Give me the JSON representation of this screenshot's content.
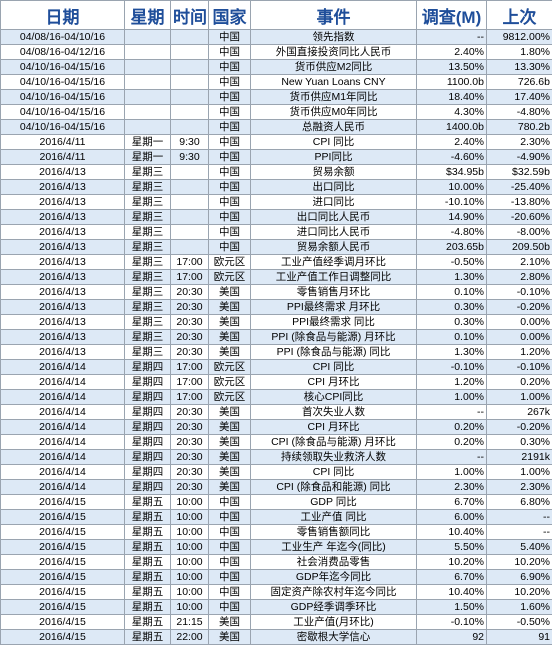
{
  "headers": {
    "date": "日期",
    "weekday": "星期",
    "time": "时间",
    "country": "国家",
    "event": "事件",
    "survey": "调查(M)",
    "prior": "上次"
  },
  "rows": [
    {
      "date": "04/08/16-04/10/16",
      "weekday": "",
      "time": "",
      "country": "中国",
      "event": "领先指数",
      "survey": "--",
      "prior": "9812.00%"
    },
    {
      "date": "04/08/16-04/12/16",
      "weekday": "",
      "time": "",
      "country": "中国",
      "event": "外国直接投资同比人民币",
      "survey": "2.40%",
      "prior": "1.80%"
    },
    {
      "date": "04/10/16-04/15/16",
      "weekday": "",
      "time": "",
      "country": "中国",
      "event": "货币供应M2同比",
      "survey": "13.50%",
      "prior": "13.30%"
    },
    {
      "date": "04/10/16-04/15/16",
      "weekday": "",
      "time": "",
      "country": "中国",
      "event": "New Yuan Loans CNY",
      "survey": "1100.0b",
      "prior": "726.6b"
    },
    {
      "date": "04/10/16-04/15/16",
      "weekday": "",
      "time": "",
      "country": "中国",
      "event": "货币供应M1年同比",
      "survey": "18.40%",
      "prior": "17.40%"
    },
    {
      "date": "04/10/16-04/15/16",
      "weekday": "",
      "time": "",
      "country": "中国",
      "event": "货币供应M0年同比",
      "survey": "4.30%",
      "prior": "-4.80%"
    },
    {
      "date": "04/10/16-04/15/16",
      "weekday": "",
      "time": "",
      "country": "中国",
      "event": "总融资人民币",
      "survey": "1400.0b",
      "prior": "780.2b"
    },
    {
      "date": "2016/4/11",
      "weekday": "星期一",
      "time": "9:30",
      "country": "中国",
      "event": "CPI 同比",
      "survey": "2.40%",
      "prior": "2.30%"
    },
    {
      "date": "2016/4/11",
      "weekday": "星期一",
      "time": "9:30",
      "country": "中国",
      "event": "PPI同比",
      "survey": "-4.60%",
      "prior": "-4.90%"
    },
    {
      "date": "2016/4/13",
      "weekday": "星期三",
      "time": "",
      "country": "中国",
      "event": "贸易余额",
      "survey": "$34.95b",
      "prior": "$32.59b"
    },
    {
      "date": "2016/4/13",
      "weekday": "星期三",
      "time": "",
      "country": "中国",
      "event": "出口同比",
      "survey": "10.00%",
      "prior": "-25.40%"
    },
    {
      "date": "2016/4/13",
      "weekday": "星期三",
      "time": "",
      "country": "中国",
      "event": "进口同比",
      "survey": "-10.10%",
      "prior": "-13.80%"
    },
    {
      "date": "2016/4/13",
      "weekday": "星期三",
      "time": "",
      "country": "中国",
      "event": "出口同比人民币",
      "survey": "14.90%",
      "prior": "-20.60%"
    },
    {
      "date": "2016/4/13",
      "weekday": "星期三",
      "time": "",
      "country": "中国",
      "event": "进口同比人民币",
      "survey": "-4.80%",
      "prior": "-8.00%"
    },
    {
      "date": "2016/4/13",
      "weekday": "星期三",
      "time": "",
      "country": "中国",
      "event": "贸易余额人民币",
      "survey": "203.65b",
      "prior": "209.50b"
    },
    {
      "date": "2016/4/13",
      "weekday": "星期三",
      "time": "17:00",
      "country": "欧元区",
      "event": "工业产值经季调月环比",
      "survey": "-0.50%",
      "prior": "2.10%"
    },
    {
      "date": "2016/4/13",
      "weekday": "星期三",
      "time": "17:00",
      "country": "欧元区",
      "event": "工业产值工作日调整同比",
      "survey": "1.30%",
      "prior": "2.80%"
    },
    {
      "date": "2016/4/13",
      "weekday": "星期三",
      "time": "20:30",
      "country": "美国",
      "event": "零售销售月环比",
      "survey": "0.10%",
      "prior": "-0.10%"
    },
    {
      "date": "2016/4/13",
      "weekday": "星期三",
      "time": "20:30",
      "country": "美国",
      "event": "PPI最终需求 月环比",
      "survey": "0.30%",
      "prior": "-0.20%"
    },
    {
      "date": "2016/4/13",
      "weekday": "星期三",
      "time": "20:30",
      "country": "美国",
      "event": "PPI最终需求 同比",
      "survey": "0.30%",
      "prior": "0.00%"
    },
    {
      "date": "2016/4/13",
      "weekday": "星期三",
      "time": "20:30",
      "country": "美国",
      "event": "PPI (除食品与能源) 月环比",
      "survey": "0.10%",
      "prior": "0.00%"
    },
    {
      "date": "2016/4/13",
      "weekday": "星期三",
      "time": "20:30",
      "country": "美国",
      "event": "PPI (除食品与能源) 同比",
      "survey": "1.30%",
      "prior": "1.20%"
    },
    {
      "date": "2016/4/14",
      "weekday": "星期四",
      "time": "17:00",
      "country": "欧元区",
      "event": "CPI 同比",
      "survey": "-0.10%",
      "prior": "-0.10%"
    },
    {
      "date": "2016/4/14",
      "weekday": "星期四",
      "time": "17:00",
      "country": "欧元区",
      "event": "CPI 月环比",
      "survey": "1.20%",
      "prior": "0.20%"
    },
    {
      "date": "2016/4/14",
      "weekday": "星期四",
      "time": "17:00",
      "country": "欧元区",
      "event": "核心CPI同比",
      "survey": "1.00%",
      "prior": "1.00%"
    },
    {
      "date": "2016/4/14",
      "weekday": "星期四",
      "time": "20:30",
      "country": "美国",
      "event": "首次失业人数",
      "survey": "--",
      "prior": "267k"
    },
    {
      "date": "2016/4/14",
      "weekday": "星期四",
      "time": "20:30",
      "country": "美国",
      "event": "CPI 月环比",
      "survey": "0.20%",
      "prior": "-0.20%"
    },
    {
      "date": "2016/4/14",
      "weekday": "星期四",
      "time": "20:30",
      "country": "美国",
      "event": "CPI (除食品与能源) 月环比",
      "survey": "0.20%",
      "prior": "0.30%"
    },
    {
      "date": "2016/4/14",
      "weekday": "星期四",
      "time": "20:30",
      "country": "美国",
      "event": "持续领取失业救济人数",
      "survey": "--",
      "prior": "2191k"
    },
    {
      "date": "2016/4/14",
      "weekday": "星期四",
      "time": "20:30",
      "country": "美国",
      "event": "CPI 同比",
      "survey": "1.00%",
      "prior": "1.00%"
    },
    {
      "date": "2016/4/14",
      "weekday": "星期四",
      "time": "20:30",
      "country": "美国",
      "event": "CPI (除食品和能源) 同比",
      "survey": "2.30%",
      "prior": "2.30%"
    },
    {
      "date": "2016/4/15",
      "weekday": "星期五",
      "time": "10:00",
      "country": "中国",
      "event": "GDP 同比",
      "survey": "6.70%",
      "prior": "6.80%"
    },
    {
      "date": "2016/4/15",
      "weekday": "星期五",
      "time": "10:00",
      "country": "中国",
      "event": "工业产值 同比",
      "survey": "6.00%",
      "prior": "--"
    },
    {
      "date": "2016/4/15",
      "weekday": "星期五",
      "time": "10:00",
      "country": "中国",
      "event": "零售销售额同比",
      "survey": "10.40%",
      "prior": "--"
    },
    {
      "date": "2016/4/15",
      "weekday": "星期五",
      "time": "10:00",
      "country": "中国",
      "event": "工业生产 年迄今(同比)",
      "survey": "5.50%",
      "prior": "5.40%"
    },
    {
      "date": "2016/4/15",
      "weekday": "星期五",
      "time": "10:00",
      "country": "中国",
      "event": "社会消费品零售",
      "survey": "10.20%",
      "prior": "10.20%"
    },
    {
      "date": "2016/4/15",
      "weekday": "星期五",
      "time": "10:00",
      "country": "中国",
      "event": "GDP年迄今同比",
      "survey": "6.70%",
      "prior": "6.90%"
    },
    {
      "date": "2016/4/15",
      "weekday": "星期五",
      "time": "10:00",
      "country": "中国",
      "event": "固定资产除农村年迄今同比",
      "survey": "10.40%",
      "prior": "10.20%"
    },
    {
      "date": "2016/4/15",
      "weekday": "星期五",
      "time": "10:00",
      "country": "中国",
      "event": "GDP经季调季环比",
      "survey": "1.50%",
      "prior": "1.60%"
    },
    {
      "date": "2016/4/15",
      "weekday": "星期五",
      "time": "21:15",
      "country": "美国",
      "event": "工业产值(月环比)",
      "survey": "-0.10%",
      "prior": "-0.50%"
    },
    {
      "date": "2016/4/15",
      "weekday": "星期五",
      "time": "22:00",
      "country": "美国",
      "event": "密歇根大学信心",
      "survey": "92",
      "prior": "91"
    }
  ]
}
